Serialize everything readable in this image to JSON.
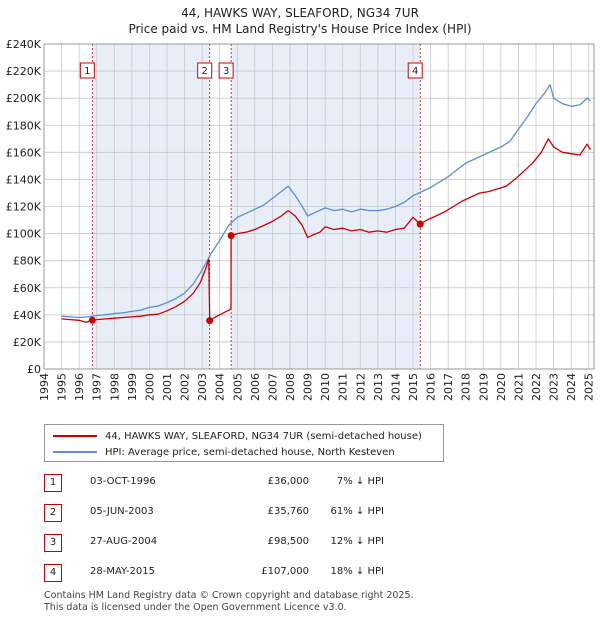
{
  "title": "44, HAWKS WAY, SLEAFORD, NG34 7UR",
  "subtitle": "Price paid vs. HM Land Registry's House Price Index (HPI)",
  "colors": {
    "property": "#cc0000",
    "hpi": "#5b8ed6",
    "shade": "#e8eef8",
    "grid": "#c8c8c8"
  },
  "chart_data": {
    "type": "line",
    "title": "Price paid vs. HM Land Registry's House Price Index (HPI)",
    "xlabel": "",
    "ylabel": "",
    "xlim": [
      1994,
      2025.3
    ],
    "ylim": [
      0,
      240000
    ],
    "y_ticks": [
      0,
      20000,
      40000,
      60000,
      80000,
      100000,
      120000,
      140000,
      160000,
      180000,
      200000,
      220000,
      240000
    ],
    "y_tick_labels": [
      "£0",
      "£20K",
      "£40K",
      "£60K",
      "£80K",
      "£100K",
      "£120K",
      "£140K",
      "£160K",
      "£180K",
      "£200K",
      "£220K",
      "£240K"
    ],
    "x_ticks": [
      1994,
      1995,
      1996,
      1997,
      1998,
      1999,
      2000,
      2001,
      2002,
      2003,
      2004,
      2005,
      2006,
      2007,
      2008,
      2009,
      2010,
      2011,
      2012,
      2013,
      2014,
      2015,
      2016,
      2017,
      2018,
      2019,
      2020,
      2021,
      2022,
      2023,
      2024,
      2025
    ],
    "x_tick_labels": [
      "1994",
      "1995",
      "1996",
      "1997",
      "1998",
      "1999",
      "2000",
      "2001",
      "2002",
      "2003",
      "2004",
      "2005",
      "2006",
      "2007",
      "2008",
      "2009",
      "2010",
      "2011",
      "2012",
      "2013",
      "2014",
      "2015",
      "2016",
      "2017",
      "2018",
      "2019",
      "2020",
      "2021",
      "2022",
      "2023",
      "2024",
      "2025"
    ],
    "shaded_ranges": [
      [
        1996.75,
        2003.43
      ],
      [
        2004.65,
        2015.41
      ]
    ],
    "series": [
      {
        "name": "44, HAWKS WAY, SLEAFORD, NG34 7UR (semi-detached house)",
        "color": "#cc0000",
        "points": [
          [
            1995.0,
            37000
          ],
          [
            1995.5,
            36500
          ],
          [
            1996.0,
            36000
          ],
          [
            1996.4,
            34500
          ],
          [
            1996.75,
            36000
          ],
          [
            1997.0,
            36500
          ],
          [
            1997.5,
            37000
          ],
          [
            1998.0,
            37500
          ],
          [
            1998.5,
            38000
          ],
          [
            1999.0,
            38500
          ],
          [
            1999.5,
            39000
          ],
          [
            2000.0,
            40000
          ],
          [
            2000.5,
            40500
          ],
          [
            2001.0,
            43000
          ],
          [
            2001.5,
            46000
          ],
          [
            2002.0,
            50000
          ],
          [
            2002.5,
            56000
          ],
          [
            2002.9,
            64000
          ],
          [
            2003.2,
            74000
          ],
          [
            2003.38,
            81000
          ],
          [
            2003.43,
            35760
          ],
          [
            2003.7,
            38000
          ],
          [
            2004.0,
            40000
          ],
          [
            2004.3,
            42000
          ],
          [
            2004.6,
            44000
          ],
          [
            2004.64,
            44500
          ],
          [
            2004.65,
            98500
          ],
          [
            2005.0,
            100000
          ],
          [
            2005.5,
            101000
          ],
          [
            2006.0,
            103000
          ],
          [
            2006.5,
            106000
          ],
          [
            2007.0,
            109000
          ],
          [
            2007.5,
            113000
          ],
          [
            2007.9,
            117000
          ],
          [
            2008.3,
            113000
          ],
          [
            2008.7,
            106000
          ],
          [
            2009.0,
            97000
          ],
          [
            2009.3,
            99000
          ],
          [
            2009.7,
            101000
          ],
          [
            2010.0,
            105000
          ],
          [
            2010.5,
            103000
          ],
          [
            2011.0,
            104000
          ],
          [
            2011.5,
            102000
          ],
          [
            2012.0,
            103000
          ],
          [
            2012.5,
            101000
          ],
          [
            2013.0,
            102000
          ],
          [
            2013.5,
            101000
          ],
          [
            2014.0,
            103000
          ],
          [
            2014.5,
            104000
          ],
          [
            2015.0,
            112000
          ],
          [
            2015.41,
            107000
          ],
          [
            2015.8,
            110000
          ],
          [
            2016.3,
            113000
          ],
          [
            2016.8,
            116000
          ],
          [
            2017.3,
            120000
          ],
          [
            2017.8,
            124000
          ],
          [
            2018.3,
            127000
          ],
          [
            2018.8,
            130000
          ],
          [
            2019.3,
            131000
          ],
          [
            2019.8,
            133000
          ],
          [
            2020.3,
            135000
          ],
          [
            2020.8,
            140000
          ],
          [
            2021.3,
            146000
          ],
          [
            2021.8,
            152000
          ],
          [
            2022.3,
            160000
          ],
          [
            2022.7,
            170000
          ],
          [
            2023.0,
            164000
          ],
          [
            2023.5,
            160000
          ],
          [
            2024.0,
            159000
          ],
          [
            2024.5,
            158000
          ],
          [
            2024.9,
            166000
          ],
          [
            2025.1,
            162000
          ]
        ]
      },
      {
        "name": "HPI: Average price, semi-detached house, North Kesteven",
        "color": "#5b8ed6",
        "points": [
          [
            1995.0,
            39000
          ],
          [
            1995.5,
            38500
          ],
          [
            1996.0,
            38000
          ],
          [
            1996.5,
            38500
          ],
          [
            1997.0,
            39500
          ],
          [
            1997.5,
            40000
          ],
          [
            1998.0,
            41000
          ],
          [
            1998.5,
            41500
          ],
          [
            1999.0,
            42500
          ],
          [
            1999.5,
            43500
          ],
          [
            2000.0,
            45500
          ],
          [
            2000.5,
            46500
          ],
          [
            2001.0,
            49000
          ],
          [
            2001.5,
            52000
          ],
          [
            2002.0,
            56000
          ],
          [
            2002.5,
            63000
          ],
          [
            2003.0,
            73000
          ],
          [
            2003.5,
            85000
          ],
          [
            2004.0,
            95000
          ],
          [
            2004.5,
            106000
          ],
          [
            2005.0,
            112000
          ],
          [
            2005.5,
            115000
          ],
          [
            2006.0,
            118000
          ],
          [
            2006.5,
            121000
          ],
          [
            2007.0,
            126000
          ],
          [
            2007.5,
            131000
          ],
          [
            2007.9,
            135000
          ],
          [
            2008.3,
            128000
          ],
          [
            2008.7,
            120000
          ],
          [
            2009.0,
            113000
          ],
          [
            2009.5,
            116000
          ],
          [
            2010.0,
            119000
          ],
          [
            2010.5,
            117000
          ],
          [
            2011.0,
            118000
          ],
          [
            2011.5,
            116000
          ],
          [
            2012.0,
            118000
          ],
          [
            2012.5,
            117000
          ],
          [
            2013.0,
            117000
          ],
          [
            2013.5,
            118000
          ],
          [
            2014.0,
            120000
          ],
          [
            2014.5,
            123000
          ],
          [
            2015.0,
            128000
          ],
          [
            2015.5,
            131000
          ],
          [
            2016.0,
            134000
          ],
          [
            2016.5,
            138000
          ],
          [
            2017.0,
            142000
          ],
          [
            2017.5,
            147000
          ],
          [
            2018.0,
            152000
          ],
          [
            2018.5,
            155000
          ],
          [
            2019.0,
            158000
          ],
          [
            2019.5,
            161000
          ],
          [
            2020.0,
            164000
          ],
          [
            2020.5,
            168000
          ],
          [
            2021.0,
            177000
          ],
          [
            2021.5,
            186000
          ],
          [
            2022.0,
            196000
          ],
          [
            2022.5,
            204000
          ],
          [
            2022.8,
            210000
          ],
          [
            2023.0,
            200000
          ],
          [
            2023.5,
            196000
          ],
          [
            2024.0,
            194000
          ],
          [
            2024.5,
            195000
          ],
          [
            2024.9,
            200000
          ],
          [
            2025.1,
            198000
          ]
        ]
      }
    ],
    "sales": [
      {
        "num": "1",
        "x": 1996.75,
        "price": 36000
      },
      {
        "num": "2",
        "x": 2003.43,
        "price": 35760
      },
      {
        "num": "3",
        "x": 2004.65,
        "price": 98500
      },
      {
        "num": "4",
        "x": 2015.41,
        "price": 107000
      }
    ]
  },
  "legend": {
    "property": "44, HAWKS WAY, SLEAFORD, NG34 7UR (semi-detached house)",
    "hpi": "HPI: Average price, semi-detached house, North Kesteven"
  },
  "transactions": [
    {
      "num": "1",
      "date": "03-OCT-1996",
      "price": "£36,000",
      "hpi": "7% ↓ HPI"
    },
    {
      "num": "2",
      "date": "05-JUN-2003",
      "price": "£35,760",
      "hpi": "61% ↓ HPI"
    },
    {
      "num": "3",
      "date": "27-AUG-2004",
      "price": "£98,500",
      "hpi": "12% ↓ HPI"
    },
    {
      "num": "4",
      "date": "28-MAY-2015",
      "price": "£107,000",
      "hpi": "18% ↓ HPI"
    }
  ],
  "footer": {
    "line1": "Contains HM Land Registry data © Crown copyright and database right 2025.",
    "line2": "This data is licensed under the Open Government Licence v3.0."
  }
}
